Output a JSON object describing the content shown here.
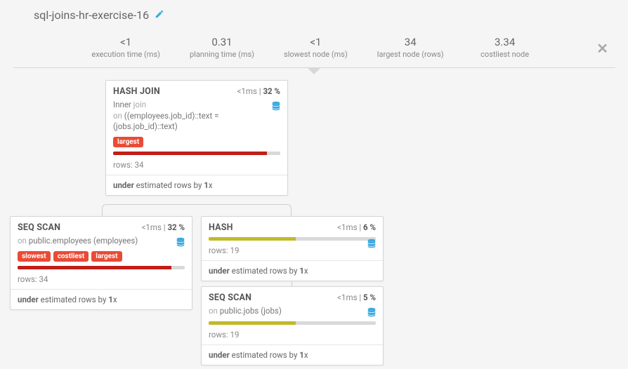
{
  "title": "sql-joins-hr-exercise-16",
  "stats": [
    {
      "value": "<1",
      "label": "execution time (ms)"
    },
    {
      "value": "0.31",
      "label": "planning time (ms)"
    },
    {
      "value": "<1",
      "label": "slowest node (ms)"
    },
    {
      "value": "34",
      "label": "largest node (rows)"
    },
    {
      "value": "3.34",
      "label": "costliest node"
    }
  ],
  "colors": {
    "red": "#c21d17",
    "olive": "#c2b92a",
    "tag": "#e94b35",
    "bar_bg": "#d9d9d9"
  },
  "nodes": {
    "hashjoin": {
      "op": "HASH JOIN",
      "time": "<1ms",
      "pct": "32 %",
      "detail_prefix": "Inner",
      "detail_mid": " join",
      "detail_on_label": "on ",
      "detail_on": "((employees.job_id)::text = (jobs.job_id)::text)",
      "tags": [
        "largest"
      ],
      "bar_pct": 92,
      "bar_color": "#c21d17",
      "rows": "rows: 34",
      "est_prefix": "under",
      "est_mid": " estimated rows by ",
      "est_factor": "1",
      "est_suffix": "x"
    },
    "seqscan_emp": {
      "op": "SEQ SCAN",
      "time": "<1ms",
      "pct": "32 %",
      "detail_on_label": "on ",
      "detail_on": "public.employees (employees)",
      "tags": [
        "slowest",
        "costliest",
        "largest"
      ],
      "bar_pct": 92,
      "bar_color": "#c21d17",
      "rows": "rows: 34",
      "est_prefix": "under",
      "est_mid": " estimated rows by ",
      "est_factor": "1",
      "est_suffix": "x"
    },
    "hash": {
      "op": "HASH",
      "time": "<1ms",
      "pct": "6 %",
      "bar_pct": 52,
      "bar_color": "#c2b92a",
      "rows": "rows: 19",
      "est_prefix": "under",
      "est_mid": " estimated rows by ",
      "est_factor": "1",
      "est_suffix": "x"
    },
    "seqscan_jobs": {
      "op": "SEQ SCAN",
      "time": "<1ms",
      "pct": "5 %",
      "detail_on_label": "on ",
      "detail_on": "public.jobs (jobs)",
      "bar_pct": 52,
      "bar_color": "#c2b92a",
      "rows": "rows: 19",
      "est_prefix": "under",
      "est_mid": " estimated rows by ",
      "est_factor": "1",
      "est_suffix": "x"
    }
  }
}
